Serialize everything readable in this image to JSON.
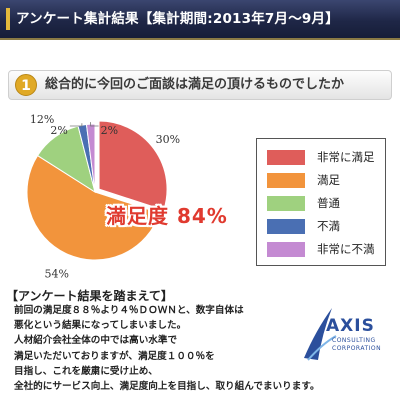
{
  "header": {
    "title": "アンケート集計結果【集計期間:2013年7月～9月】"
  },
  "question": {
    "number": "1",
    "text": "総合的に今回のご面談は満足の頂けるものでしたか"
  },
  "highlight": "満足度 84%",
  "chart_data": {
    "type": "pie",
    "categories": [
      "非常に満足",
      "満足",
      "普通",
      "不満",
      "非常に不満"
    ],
    "values": [
      30,
      54,
      12,
      2,
      2
    ],
    "colors": [
      "#df5d5a",
      "#f2943c",
      "#9fd17f",
      "#4a6fb3",
      "#c48ad2"
    ],
    "labels": [
      "30%",
      "54%",
      "12%",
      "2%",
      "2%"
    ],
    "legend_position": "right"
  },
  "summary": {
    "heading": "【アンケート結果を踏まえて】",
    "lines": [
      "前回の満足度８８％より４％ＤＯＷＮと、数字自体は",
      "悪化という結果になってしまいました。",
      "人材紹介会社全体の中では高い水準で",
      "満足いただいておりますが、満足度１００％を",
      "目指し、これを厳粛に受け止め、",
      "全社的にサービス向上、満足度向上を目指し、取り組んでまいります。"
    ]
  },
  "logo": {
    "name": "AXIS",
    "sub1": "CONSULTING",
    "sub2": "CORPORATION"
  }
}
